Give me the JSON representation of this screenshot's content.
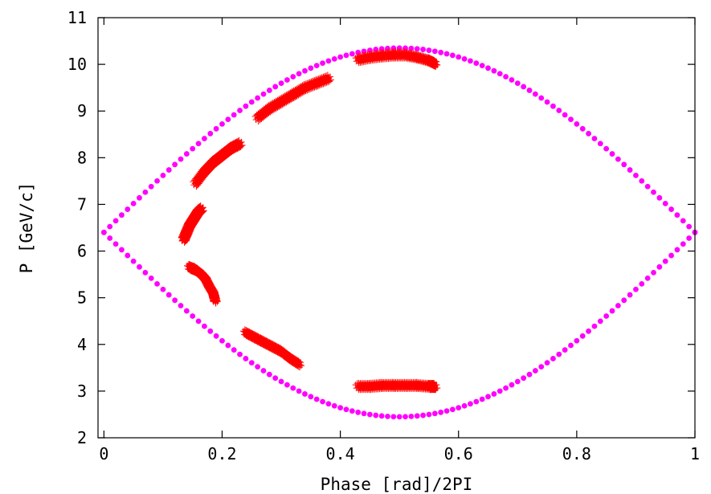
{
  "chart_data": {
    "type": "scatter",
    "xlabel": "Phase [rad]/2PI",
    "ylabel": "P [GeV/c]",
    "xlim": [
      -0.01,
      1.0
    ],
    "ylim": [
      2,
      11
    ],
    "xticks": [
      0,
      0.2,
      0.4,
      0.6,
      0.8,
      1
    ],
    "xtick_labels": [
      "0",
      "0.2",
      "0.4",
      "0.6",
      "0.8",
      "1"
    ],
    "yticks": [
      2,
      3,
      4,
      5,
      6,
      7,
      8,
      9,
      10,
      11
    ],
    "ytick_labels": [
      "2",
      "3",
      "4",
      "5",
      "6",
      "7",
      "8",
      "9",
      "10",
      "11"
    ],
    "grid": false,
    "legend": "none",
    "series": [
      {
        "marker": "filled-circle",
        "color": "#ff00ff",
        "shape": "separatrix",
        "center_p": 6.4,
        "upper_max_p": 10.35,
        "lower_min_p": 2.45,
        "phase_range": [
          0.0,
          1.0
        ],
        "num_points_per_branch": 101
      },
      {
        "marker": "plus",
        "color": "#ff0000",
        "clusters": [
          {
            "x": [
              0.43,
              0.45,
              0.47,
              0.49,
              0.51,
              0.53,
              0.55,
              0.56
            ],
            "y": [
              10.1,
              10.15,
              10.18,
              10.2,
              10.2,
              10.15,
              10.08,
              10.02
            ]
          },
          {
            "x": [
              0.26,
              0.28,
              0.3,
              0.32,
              0.34,
              0.36,
              0.38
            ],
            "y": [
              8.85,
              9.05,
              9.2,
              9.35,
              9.5,
              9.6,
              9.7
            ]
          },
          {
            "x": [
              0.155,
              0.17,
              0.185,
              0.2,
              0.215,
              0.23
            ],
            "y": [
              7.45,
              7.7,
              7.9,
              8.05,
              8.2,
              8.3
            ]
          },
          {
            "x": [
              0.135,
              0.14,
              0.145,
              0.15,
              0.155,
              0.16,
              0.165
            ],
            "y": [
              6.25,
              6.4,
              6.55,
              6.65,
              6.75,
              6.85,
              6.9
            ]
          },
          {
            "x": [
              0.145,
              0.155,
              0.165,
              0.172,
              0.178,
              0.185,
              0.188
            ],
            "y": [
              5.65,
              5.6,
              5.5,
              5.4,
              5.25,
              5.1,
              4.95
            ]
          },
          {
            "x": [
              0.24,
              0.255,
              0.27,
              0.285,
              0.3,
              0.315,
              0.33
            ],
            "y": [
              4.25,
              4.15,
              4.05,
              3.95,
              3.85,
              3.7,
              3.58
            ]
          },
          {
            "x": [
              0.43,
              0.45,
              0.47,
              0.49,
              0.51,
              0.53,
              0.55,
              0.56
            ],
            "y": [
              3.1,
              3.1,
              3.12,
              3.12,
              3.12,
              3.12,
              3.1,
              3.1
            ]
          }
        ]
      }
    ]
  }
}
